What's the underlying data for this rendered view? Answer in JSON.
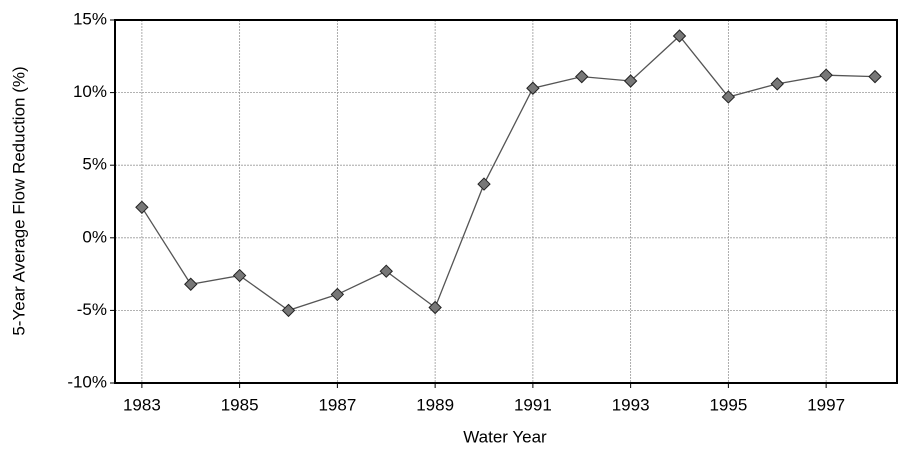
{
  "chart_data": {
    "type": "line",
    "x_label": "Water Year",
    "y_label": "5-Year Average Flow Reduction (%)",
    "x": [
      1983,
      1984,
      1985,
      1986,
      1987,
      1988,
      1989,
      1990,
      1991,
      1992,
      1993,
      1994,
      1995,
      1996,
      1997,
      1998
    ],
    "series": [
      {
        "color": "#555555",
        "values": [
          2.1,
          -3.2,
          -2.6,
          -5.0,
          -3.9,
          -2.3,
          -4.8,
          3.7,
          10.3,
          11.1,
          10.8,
          13.9,
          9.7,
          10.6,
          11.2,
          11.1
        ]
      }
    ],
    "xlim": [
      1982.45,
      1998.45
    ],
    "xticks": [
      1983,
      1985,
      1987,
      1989,
      1991,
      1993,
      1995,
      1997
    ],
    "ylim": [
      -10,
      15
    ],
    "yticks": [
      {
        "value": -10,
        "label": "-10%"
      },
      {
        "value": -5,
        "label": "-5%"
      },
      {
        "value": 0,
        "label": "0%"
      },
      {
        "value": 5,
        "label": "5%"
      },
      {
        "value": 10,
        "label": "10%"
      },
      {
        "value": 15,
        "label": "15%"
      }
    ],
    "grid": true
  }
}
